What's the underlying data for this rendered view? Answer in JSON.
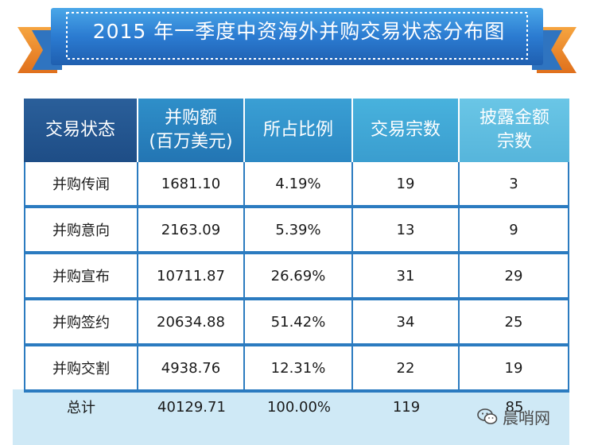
{
  "title": "2015 年一季度中资海外并购交易状态分布图",
  "table": {
    "headers": [
      {
        "line1": "交易状态",
        "line2": ""
      },
      {
        "line1": "并购额",
        "line2": "(百万美元)"
      },
      {
        "line1": "所占比例",
        "line2": ""
      },
      {
        "line1": "交易宗数",
        "line2": ""
      },
      {
        "line1": "披露金额",
        "line2": "宗数"
      }
    ],
    "rows": [
      [
        "并购传闻",
        "1681.10",
        "4.19%",
        "19",
        "3"
      ],
      [
        "并购意向",
        "2163.09",
        "5.39%",
        "13",
        "9"
      ],
      [
        "并购宣布",
        "10711.87",
        "26.69%",
        "31",
        "29"
      ],
      [
        "并购签约",
        "20634.88",
        "51.42%",
        "34",
        "25"
      ],
      [
        "并购交割",
        "4938.76",
        "12.31%",
        "22",
        "19"
      ]
    ],
    "total": [
      "总计",
      "40129.71",
      "100.00%",
      "119",
      "85"
    ]
  },
  "watermark": {
    "text": "晨哨网",
    "icon": "wechat-icon"
  },
  "colors": {
    "banner_blue": "#2a6fc4",
    "banner_orange": "#f08a2a",
    "header_dark": "#1e4d86",
    "header_light": "#6ac6e6",
    "grid_blue": "#2b7bc0",
    "total_bg": "#cfe9f6"
  }
}
